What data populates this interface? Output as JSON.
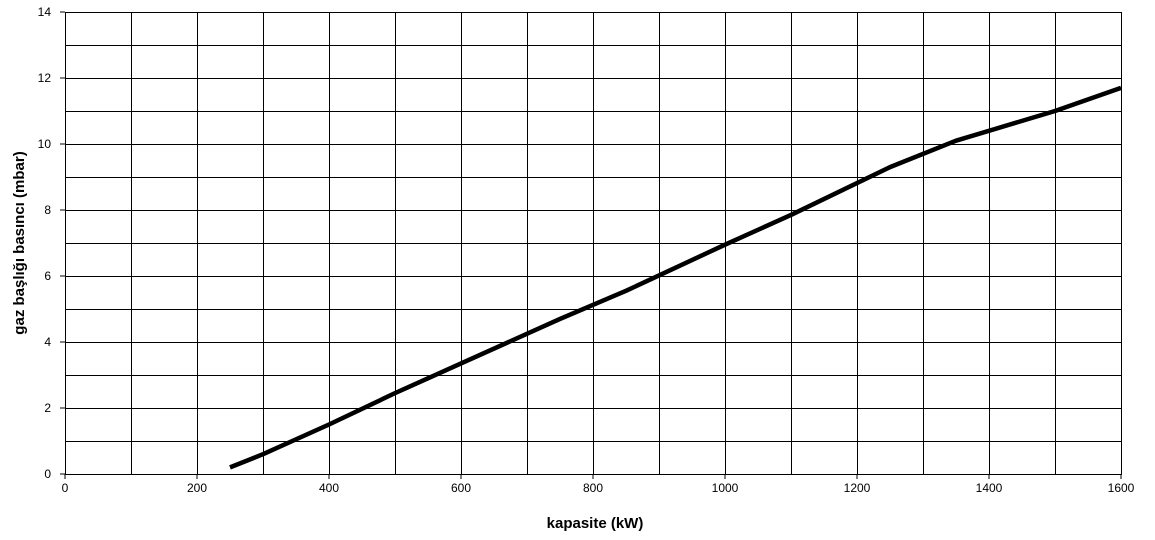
{
  "chart_data": {
    "type": "line",
    "title": "",
    "xlabel": "kapasite (kW)",
    "ylabel": "gaz başlığı basıncı (mbar)",
    "xlim": [
      0,
      1600
    ],
    "ylim": [
      0,
      14
    ],
    "x_ticks": [
      0,
      200,
      400,
      600,
      800,
      1000,
      1200,
      1400,
      1600
    ],
    "y_ticks": [
      0,
      2,
      4,
      6,
      8,
      10,
      12,
      14
    ],
    "x_minor_step": 100,
    "y_minor_step": 1,
    "grid": true,
    "legend": "none",
    "series": [
      {
        "color": "#000000",
        "points": [
          {
            "x": 250,
            "y": 0.2
          },
          {
            "x": 300,
            "y": 0.6
          },
          {
            "x": 400,
            "y": 1.5
          },
          {
            "x": 500,
            "y": 2.45
          },
          {
            "x": 600,
            "y": 3.35
          },
          {
            "x": 750,
            "y": 4.7
          },
          {
            "x": 850,
            "y": 5.55
          },
          {
            "x": 1000,
            "y": 6.95
          },
          {
            "x": 1100,
            "y": 7.85
          },
          {
            "x": 1250,
            "y": 9.3
          },
          {
            "x": 1350,
            "y": 10.1
          },
          {
            "x": 1500,
            "y": 11.0
          },
          {
            "x": 1600,
            "y": 11.7
          }
        ]
      }
    ]
  }
}
